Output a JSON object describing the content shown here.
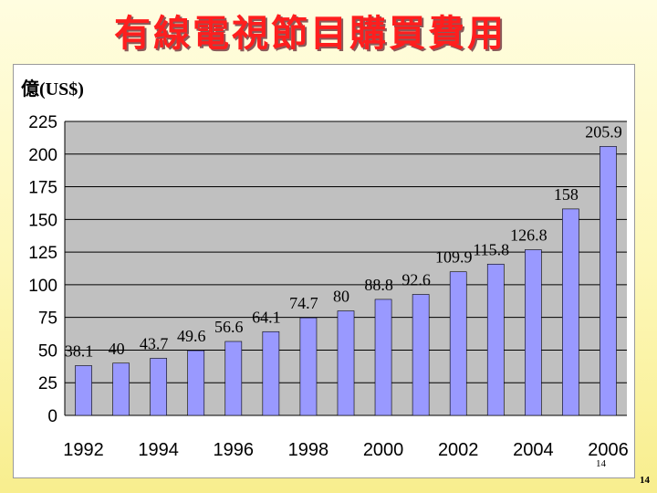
{
  "slide": {
    "title": "有線電視節目購買費用",
    "page_number": "14"
  },
  "chart_data": {
    "type": "bar",
    "unit_label": "億(US$)",
    "categories": [
      "1992",
      "1993",
      "1994",
      "1995",
      "1996",
      "1997",
      "1998",
      "1999",
      "2000",
      "2001",
      "2002",
      "2003",
      "2004",
      "2005",
      "2006"
    ],
    "values": [
      38.1,
      40,
      43.7,
      49.6,
      56.6,
      64.1,
      74.7,
      80,
      88.8,
      92.6,
      109.9,
      115.8,
      126.8,
      158,
      205.9
    ],
    "value_labels": [
      "38.1",
      "40",
      "43.7",
      "49.6",
      "56.6",
      "64.1",
      "74.7",
      "80",
      "88.8",
      "92.6",
      "109.9",
      "115.8",
      "126.8",
      "158",
      "205.9"
    ],
    "x_tick_labels": [
      "1992",
      "1994",
      "1996",
      "1998",
      "2000",
      "2002",
      "2004",
      "2006"
    ],
    "y_ticks": [
      0,
      25,
      50,
      75,
      100,
      125,
      150,
      175,
      200,
      225
    ],
    "ylim": [
      0,
      225
    ],
    "grid": true,
    "plot_background": "#c0c0c0",
    "bar_color": "#9999ff",
    "bar_stroke": "#000000",
    "inner_page_number": "14"
  }
}
